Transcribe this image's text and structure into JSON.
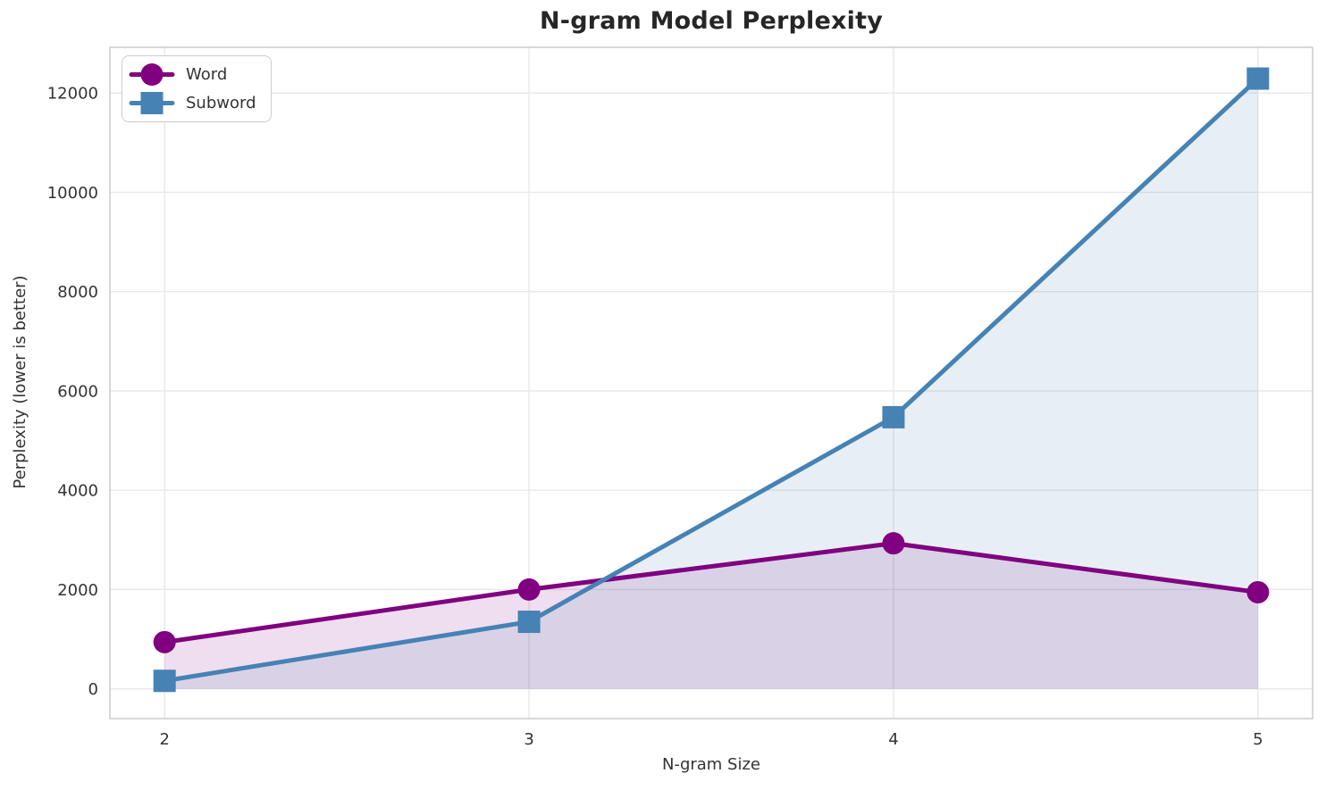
{
  "title": "N-gram Model Perplexity",
  "chart_data": {
    "type": "line",
    "title": "N-gram Model Perplexity",
    "xlabel": "N-gram Size",
    "ylabel": "Perplexity (lower is better)",
    "x": [
      2,
      3,
      4,
      5
    ],
    "xtick_labels": [
      "2",
      "3",
      "4",
      "5"
    ],
    "yticks": [
      0,
      2000,
      4000,
      6000,
      8000,
      10000,
      12000
    ],
    "ytick_labels": [
      "0",
      "2000",
      "4000",
      "6000",
      "8000",
      "10000",
      "12000"
    ],
    "xlim": [
      1.85,
      5.15
    ],
    "ylim": [
      -600,
      12920
    ],
    "grid": true,
    "legend_position": "upper-left",
    "series": [
      {
        "name": "Word",
        "marker": "circle",
        "color": "#800080",
        "fill_under": true,
        "values": [
          940,
          2000,
          2930,
          1945
        ]
      },
      {
        "name": "Subword",
        "marker": "square",
        "color": "#4682B4",
        "fill_under": true,
        "values": [
          160,
          1350,
          5470,
          12290
        ]
      }
    ]
  },
  "colors": {
    "background": "#FFFFFF",
    "grid": "#E8E8E8",
    "spine": "#CCCCCC",
    "title_text": "#262626",
    "label_text": "#333333",
    "word_series": "#800080",
    "subword_series": "#4682B4",
    "fill_opacity": 0.13
  }
}
